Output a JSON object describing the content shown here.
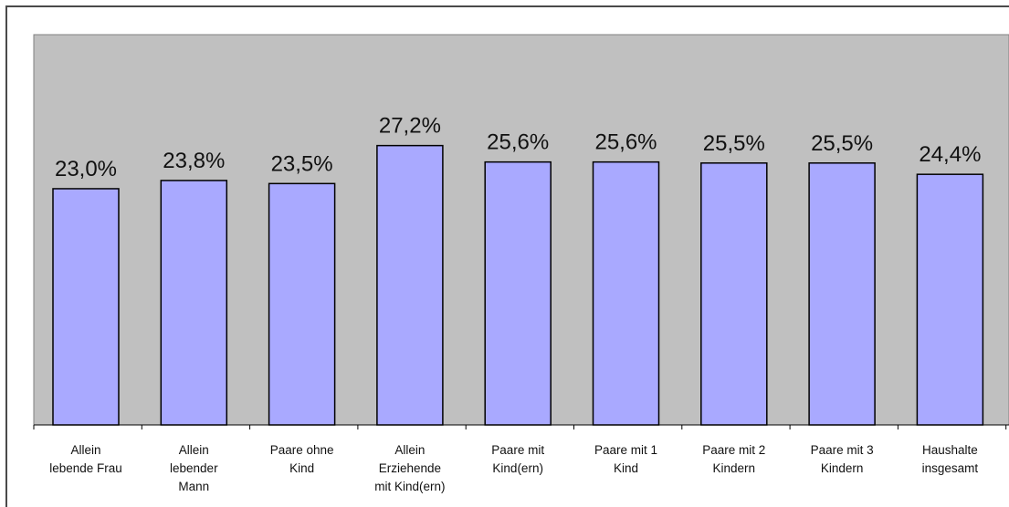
{
  "chart_data": {
    "type": "bar",
    "title": "",
    "xlabel": "",
    "ylabel": "",
    "grid": false,
    "legend": "none",
    "categories": [
      [
        "Allein",
        "lebende Frau"
      ],
      [
        "Allein",
        "lebender",
        "Mann"
      ],
      [
        "Paare ohne",
        "Kind"
      ],
      [
        "Allein",
        "Erziehende",
        "mit Kind(ern)"
      ],
      [
        "Paare mit",
        "Kind(ern)"
      ],
      [
        "Paare mit 1",
        "Kind"
      ],
      [
        "Paare mit 2",
        "Kindern"
      ],
      [
        "Paare mit 3",
        "Kindern"
      ],
      [
        "Haushalte",
        "insgesamt"
      ]
    ],
    "values": [
      23.0,
      23.8,
      23.5,
      27.2,
      25.6,
      25.6,
      25.5,
      25.5,
      24.4
    ],
    "value_labels": [
      "23,0%",
      "23,8%",
      "23,5%",
      "27,2%",
      "25,6%",
      "25,6%",
      "25,5%",
      "25,5%",
      "24,4%"
    ],
    "ylim": [
      0,
      38
    ],
    "colors": {
      "bar": "#a9a9ff",
      "bar_border": "#000000",
      "plot_background": "#c0c0c0",
      "frame": "#4a4a4a"
    }
  }
}
